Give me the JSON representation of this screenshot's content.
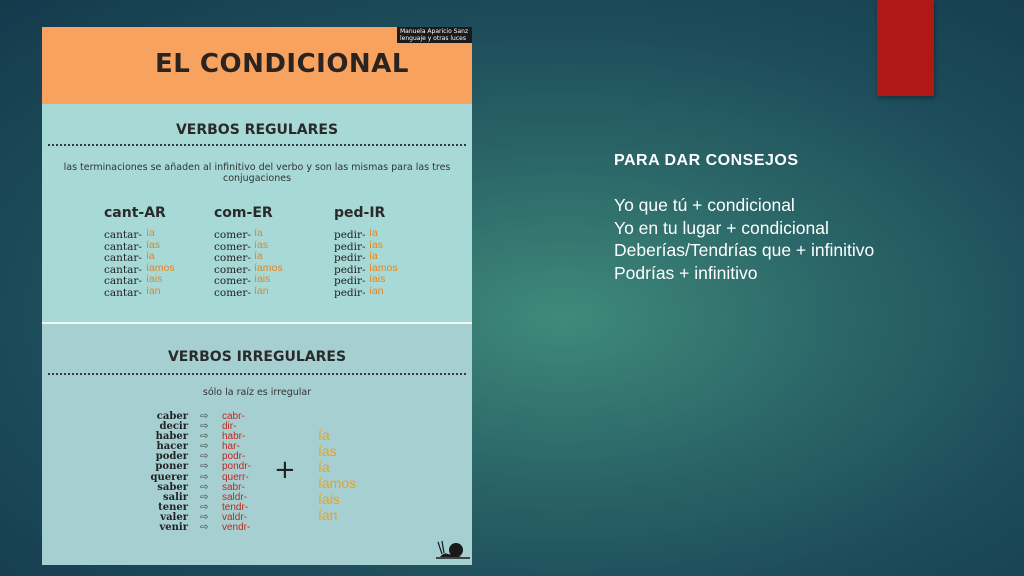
{
  "poster": {
    "title": "EL CONDICIONAL",
    "credit_line1": "Manuela Aparicio Sanz",
    "credit_line2": "lenguaje y otras luces",
    "regular": {
      "title": "VERBOS REGULARES",
      "note": "las terminaciones se añaden al infinitivo del verbo y son las mismas para las tres conjugaciones",
      "columns": [
        {
          "head": "cant-AR",
          "stem": "cantar-"
        },
        {
          "head": "com-ER",
          "stem": "comer-"
        },
        {
          "head": "ped-IR",
          "stem": "pedir-"
        }
      ],
      "endings": [
        "ía",
        "ías",
        "ía",
        "íamos",
        "íais",
        "ían"
      ]
    },
    "irregular": {
      "title": "VERBOS IRREGULARES",
      "note": "sólo la raíz es irregular",
      "verbs": [
        "caber",
        "decir",
        "haber",
        "hacer",
        "poder",
        "poner",
        "querer",
        "saber",
        "salir",
        "tener",
        "valer",
        "venir"
      ],
      "roots": [
        "cabr-",
        "dir-",
        "habr-",
        "har-",
        "podr-",
        "pondr-",
        "querr-",
        "sabr-",
        "saldr-",
        "tendr-",
        "valdr-",
        "vendr-"
      ],
      "plus": "+",
      "endings": [
        "ía",
        "ías",
        "ía",
        "íamos",
        "íais",
        "ían"
      ]
    }
  },
  "advice": {
    "heading": "PARA DAR CONSEJOS",
    "lines": [
      "Yo que tú + condicional",
      "Yo en tu lugar + condicional",
      "Deberías/Tendrías que + infinitivo",
      "Podrías + infinitivo"
    ]
  },
  "colors": {
    "accent_red": "#b01818",
    "poster_orange": "#f7a25e",
    "poster_teal": "#a7d9d6",
    "ending_orange": "#e8831e",
    "root_red": "#c0271e"
  }
}
